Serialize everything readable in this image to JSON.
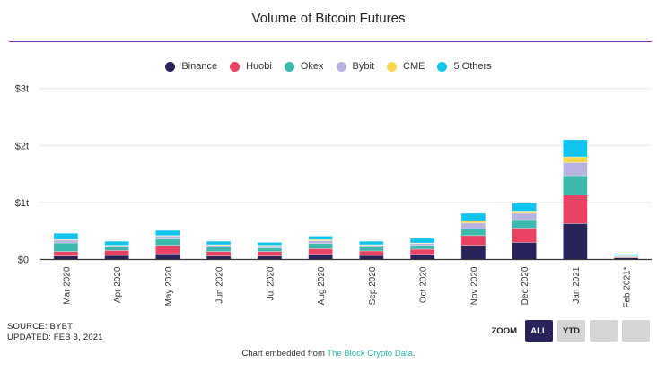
{
  "chart_data": {
    "type": "bar",
    "stacked": true,
    "title": "Volume of Bitcoin Futures",
    "xlabel": "",
    "ylabel": "",
    "ylim": [
      0,
      3
    ],
    "yticks": [
      "$0",
      "$1t",
      "$2t",
      "$3t"
    ],
    "grid": true,
    "legend_position": "top-center",
    "categories": [
      "Mar 2020",
      "Apr 2020",
      "May 2020",
      "Jun 2020",
      "Jul 2020",
      "Aug 2020",
      "Sep 2020",
      "Oct 2020",
      "Nov 2020",
      "Dec 2020",
      "Jan 2021",
      "Feb 2021*"
    ],
    "series": [
      {
        "name": "Binance",
        "color": "#29235c",
        "values": [
          0.06,
          0.07,
          0.1,
          0.06,
          0.06,
          0.09,
          0.07,
          0.09,
          0.25,
          0.3,
          0.63,
          0.03
        ]
      },
      {
        "name": "Huobi",
        "color": "#ea4263",
        "values": [
          0.08,
          0.09,
          0.15,
          0.08,
          0.08,
          0.1,
          0.08,
          0.09,
          0.17,
          0.25,
          0.5,
          0.01
        ]
      },
      {
        "name": "Okex",
        "color": "#3bb9ad",
        "values": [
          0.15,
          0.06,
          0.11,
          0.08,
          0.06,
          0.09,
          0.07,
          0.07,
          0.12,
          0.15,
          0.34,
          0.01
        ]
      },
      {
        "name": "Bybit",
        "color": "#b7b2e0",
        "values": [
          0.05,
          0.02,
          0.05,
          0.03,
          0.04,
          0.05,
          0.03,
          0.03,
          0.1,
          0.11,
          0.23,
          0.01
        ]
      },
      {
        "name": "CME",
        "color": "#fcd84e",
        "values": [
          0.01,
          0.01,
          0.01,
          0.01,
          0.01,
          0.02,
          0.01,
          0.01,
          0.04,
          0.04,
          0.1,
          0.005
        ]
      },
      {
        "name": "5 Others",
        "color": "#10c4f0",
        "values": [
          0.11,
          0.07,
          0.09,
          0.06,
          0.05,
          0.06,
          0.06,
          0.08,
          0.13,
          0.14,
          0.3,
          0.025
        ]
      }
    ]
  },
  "footer": {
    "source": "SOURCE: BYBT",
    "updated": "UPDATED: FEB 3, 2021",
    "zoom_label": "ZOOM",
    "zoom_buttons": [
      "ALL",
      "YTD"
    ],
    "embed_prefix": "Chart embedded from ",
    "embed_link": "The Block Crypto Data",
    "embed_suffix": "."
  }
}
